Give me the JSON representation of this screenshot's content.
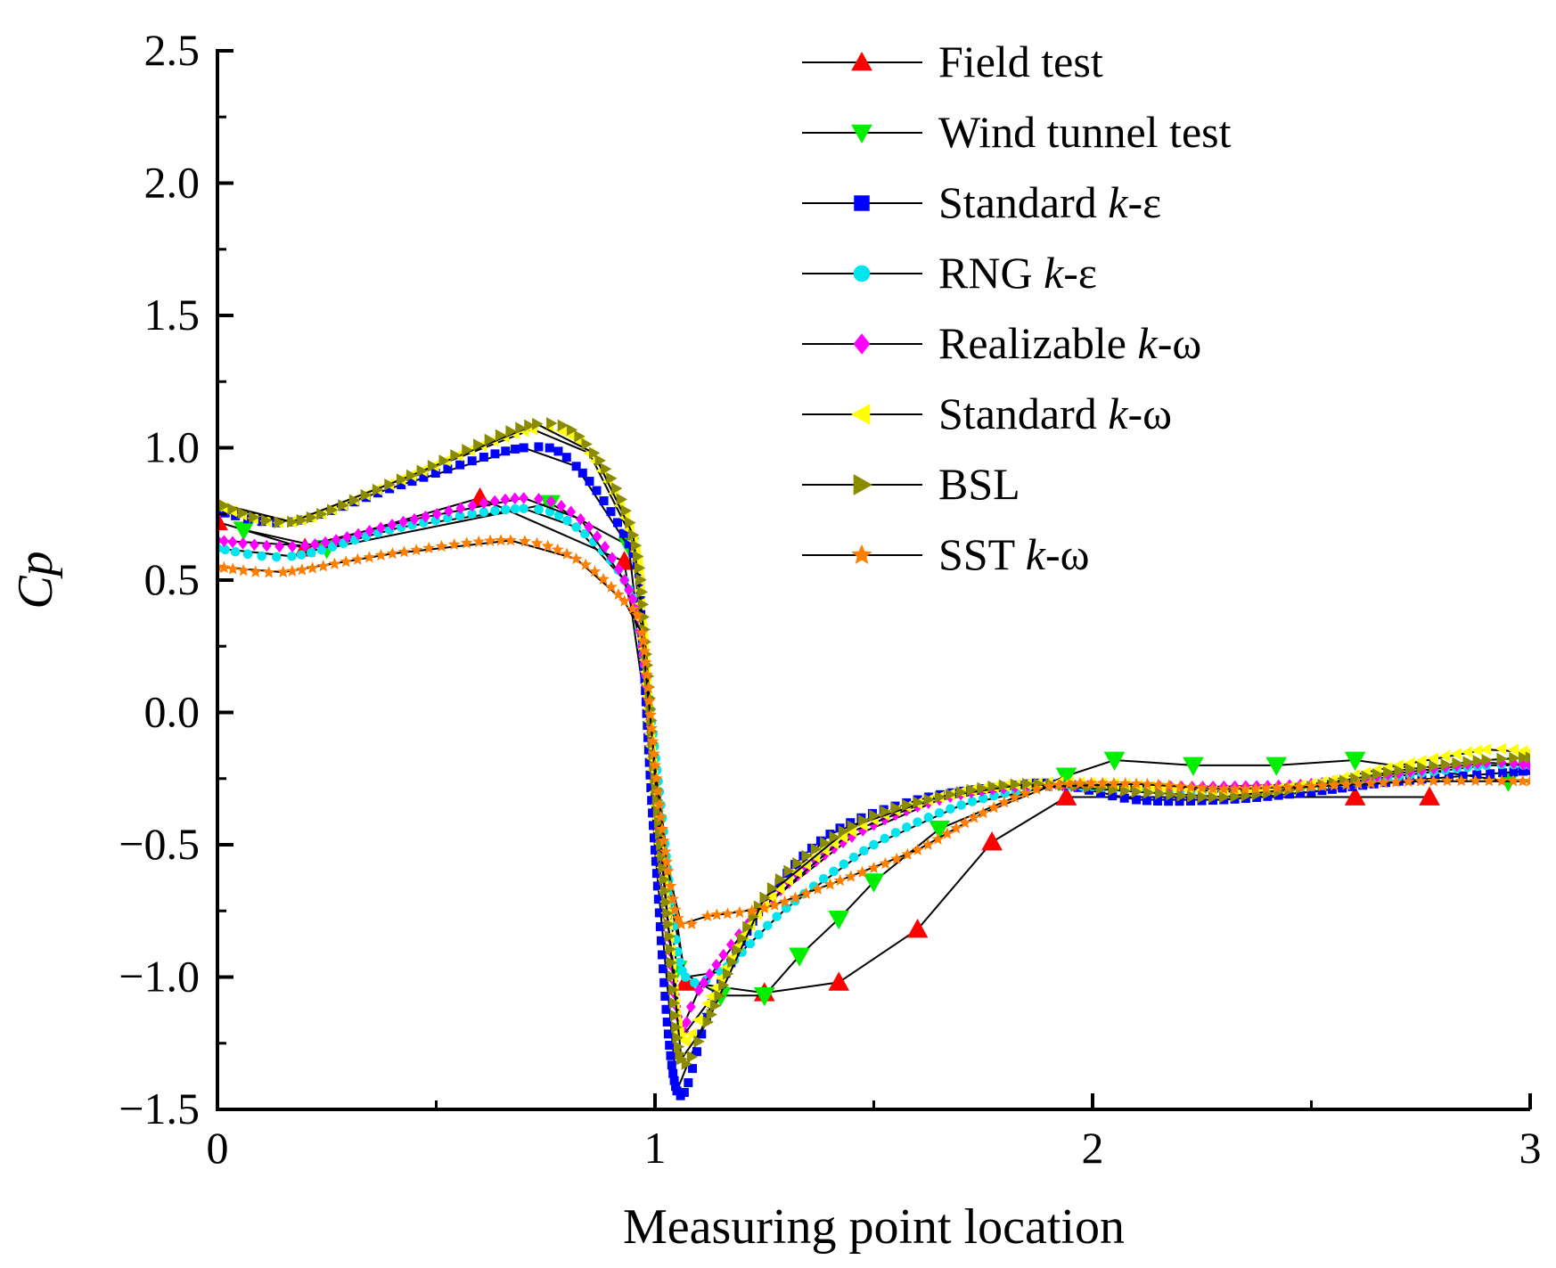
{
  "chart_data": {
    "type": "line",
    "xlabel": "Measuring point location",
    "ylabel": "Cp",
    "xlim": [
      0,
      3
    ],
    "ylim": [
      -1.5,
      2.5
    ],
    "xticks": [
      "0",
      "1",
      "2",
      "3"
    ],
    "yticks": [
      "−1.5",
      "−1.0",
      "−0.5",
      "0.0",
      "0.5",
      "1.0",
      "1.5",
      "2.0",
      "2.5"
    ],
    "ytick_values": [
      -1.5,
      -1.0,
      -0.5,
      0.0,
      0.5,
      1.0,
      1.5,
      2.0,
      2.5
    ],
    "xtick_values": [
      0,
      1,
      2,
      3
    ],
    "grid": false,
    "legend_position": "top-right",
    "series": [
      {
        "name": "Field test",
        "marker": "triangle-up",
        "color": "#ff0000",
        "markers_dense": false,
        "points": [
          [
            0.0,
            0.72
          ],
          [
            0.2,
            0.62
          ],
          [
            0.6,
            0.81
          ],
          [
            0.93,
            0.57
          ],
          [
            1.07,
            -1.02
          ],
          [
            1.25,
            -1.06
          ],
          [
            1.42,
            -1.02
          ],
          [
            1.6,
            -0.82
          ],
          [
            1.77,
            -0.49
          ],
          [
            1.94,
            -0.32
          ],
          [
            2.6,
            -0.32
          ],
          [
            2.77,
            -0.32
          ]
        ]
      },
      {
        "name": "Wind tunnel test",
        "marker": "triangle-down",
        "color": "#00ee00",
        "markers_dense": false,
        "points": [
          [
            0.06,
            0.69
          ],
          [
            0.25,
            0.62
          ],
          [
            0.76,
            0.79
          ],
          [
            0.94,
            0.63
          ],
          [
            1.05,
            -0.97
          ],
          [
            1.15,
            -1.07
          ],
          [
            1.25,
            -1.07
          ],
          [
            1.33,
            -0.92
          ],
          [
            1.42,
            -0.78
          ],
          [
            1.5,
            -0.64
          ],
          [
            1.65,
            -0.44
          ],
          [
            1.94,
            -0.24
          ],
          [
            2.05,
            -0.18
          ],
          [
            2.23,
            -0.2
          ],
          [
            2.42,
            -0.2
          ],
          [
            2.6,
            -0.18
          ],
          [
            2.95,
            -0.26
          ]
        ]
      },
      {
        "name": "Standard k-ε",
        "marker": "square",
        "color": "#0000ff",
        "markers_dense": true,
        "points": [
          [
            0.0,
            0.76
          ],
          [
            0.17,
            0.72
          ],
          [
            0.42,
            0.86
          ],
          [
            0.7,
            1.0
          ],
          [
            0.82,
            0.93
          ],
          [
            0.95,
            0.6
          ],
          [
            0.97,
            0.3
          ],
          [
            1.0,
            -0.52
          ],
          [
            1.05,
            -1.43
          ],
          [
            1.13,
            -1.1
          ],
          [
            1.25,
            -0.72
          ],
          [
            1.4,
            -0.46
          ],
          [
            1.6,
            -0.33
          ],
          [
            1.8,
            -0.28
          ],
          [
            1.92,
            -0.27
          ],
          [
            2.1,
            -0.33
          ],
          [
            2.3,
            -0.33
          ],
          [
            2.5,
            -0.3
          ],
          [
            2.7,
            -0.26
          ],
          [
            3.0,
            -0.22
          ]
        ]
      },
      {
        "name": "RNG k-ε",
        "marker": "circle",
        "color": "#00e5ee",
        "markers_dense": true,
        "points": [
          [
            0.0,
            0.62
          ],
          [
            0.17,
            0.59
          ],
          [
            0.42,
            0.7
          ],
          [
            0.7,
            0.77
          ],
          [
            0.82,
            0.7
          ],
          [
            0.93,
            0.5
          ],
          [
            0.97,
            0.25
          ],
          [
            1.01,
            -0.3
          ],
          [
            1.04,
            -0.75
          ],
          [
            1.07,
            -1.0
          ],
          [
            1.15,
            -0.98
          ],
          [
            1.3,
            -0.74
          ],
          [
            1.5,
            -0.5
          ],
          [
            1.7,
            -0.35
          ],
          [
            1.9,
            -0.28
          ],
          [
            2.1,
            -0.29
          ],
          [
            2.3,
            -0.3
          ],
          [
            2.5,
            -0.28
          ],
          [
            2.7,
            -0.24
          ],
          [
            2.9,
            -0.2
          ],
          [
            3.0,
            -0.2
          ]
        ]
      },
      {
        "name": "Realizable k-ω",
        "marker": "diamond",
        "color": "#ff00ff",
        "markers_dense": true,
        "points": [
          [
            0.0,
            0.65
          ],
          [
            0.2,
            0.63
          ],
          [
            0.45,
            0.73
          ],
          [
            0.7,
            0.81
          ],
          [
            0.83,
            0.73
          ],
          [
            0.93,
            0.5
          ],
          [
            0.97,
            0.25
          ],
          [
            1.0,
            -0.3
          ],
          [
            1.03,
            -0.8
          ],
          [
            1.06,
            -1.2
          ],
          [
            1.1,
            -1.05
          ],
          [
            1.25,
            -0.73
          ],
          [
            1.45,
            -0.47
          ],
          [
            1.65,
            -0.33
          ],
          [
            1.85,
            -0.28
          ],
          [
            2.1,
            -0.28
          ],
          [
            2.3,
            -0.28
          ],
          [
            2.5,
            -0.27
          ],
          [
            2.7,
            -0.23
          ],
          [
            2.9,
            -0.19
          ],
          [
            3.0,
            -0.2
          ]
        ]
      },
      {
        "name": "Standard k-ω",
        "marker": "triangle-left",
        "color": "#ffff00",
        "markers_dense": true,
        "points": [
          [
            0.0,
            0.78
          ],
          [
            0.17,
            0.72
          ],
          [
            0.42,
            0.88
          ],
          [
            0.72,
            1.07
          ],
          [
            0.85,
            0.98
          ],
          [
            0.95,
            0.65
          ],
          [
            0.97,
            0.35
          ],
          [
            1.0,
            -0.3
          ],
          [
            1.03,
            -0.8
          ],
          [
            1.06,
            -1.23
          ],
          [
            1.12,
            -1.1
          ],
          [
            1.25,
            -0.73
          ],
          [
            1.45,
            -0.45
          ],
          [
            1.65,
            -0.32
          ],
          [
            1.85,
            -0.27
          ],
          [
            2.05,
            -0.27
          ],
          [
            2.3,
            -0.3
          ],
          [
            2.5,
            -0.27
          ],
          [
            2.7,
            -0.2
          ],
          [
            2.9,
            -0.14
          ],
          [
            3.0,
            -0.15
          ]
        ]
      },
      {
        "name": "BSL",
        "marker": "triangle-right",
        "color": "#8b8b00",
        "markers_dense": true,
        "points": [
          [
            0.0,
            0.79
          ],
          [
            0.17,
            0.72
          ],
          [
            0.42,
            0.88
          ],
          [
            0.73,
            1.09
          ],
          [
            0.86,
            0.98
          ],
          [
            0.95,
            0.67
          ],
          [
            0.98,
            0.22
          ],
          [
            1.0,
            -0.25
          ],
          [
            1.03,
            -0.8
          ],
          [
            1.06,
            -1.31
          ],
          [
            1.12,
            -1.17
          ],
          [
            1.25,
            -0.7
          ],
          [
            1.45,
            -0.43
          ],
          [
            1.65,
            -0.32
          ],
          [
            1.85,
            -0.27
          ],
          [
            2.1,
            -0.3
          ],
          [
            2.3,
            -0.32
          ],
          [
            2.5,
            -0.28
          ],
          [
            2.7,
            -0.22
          ],
          [
            2.9,
            -0.18
          ],
          [
            3.0,
            -0.17
          ]
        ]
      },
      {
        "name": "SST k-ω",
        "marker": "star",
        "color": "#ff7f00",
        "markers_dense": true,
        "points": [
          [
            0.0,
            0.55
          ],
          [
            0.15,
            0.53
          ],
          [
            0.4,
            0.6
          ],
          [
            0.67,
            0.65
          ],
          [
            0.82,
            0.58
          ],
          [
            0.93,
            0.42
          ],
          [
            0.97,
            0.3
          ],
          [
            1.0,
            -0.2
          ],
          [
            1.03,
            -0.6
          ],
          [
            1.06,
            -0.8
          ],
          [
            1.12,
            -0.77
          ],
          [
            1.25,
            -0.74
          ],
          [
            1.4,
            -0.65
          ],
          [
            1.6,
            -0.52
          ],
          [
            1.75,
            -0.38
          ],
          [
            1.9,
            -0.28
          ],
          [
            2.1,
            -0.27
          ],
          [
            2.3,
            -0.29
          ],
          [
            2.5,
            -0.28
          ],
          [
            2.75,
            -0.26
          ],
          [
            3.0,
            -0.26
          ]
        ]
      }
    ]
  }
}
